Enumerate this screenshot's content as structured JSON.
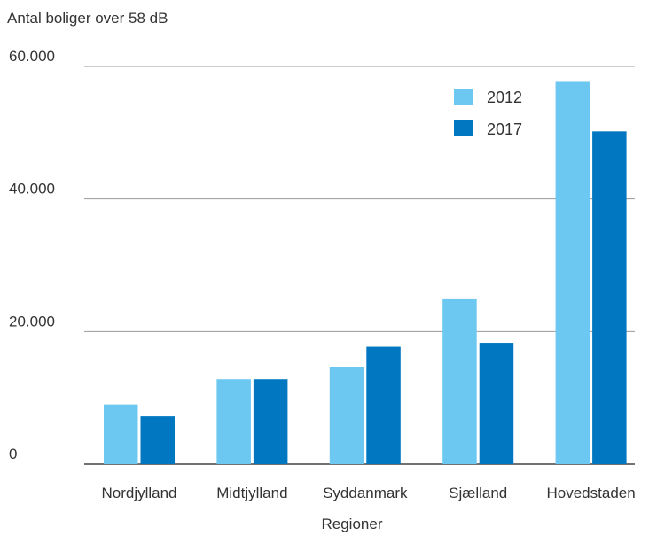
{
  "chart_data": {
    "type": "bar",
    "title": "",
    "ylabel": "Antal boliger over 58 dB",
    "xlabel": "Regioner",
    "categories": [
      "Nordjylland",
      "Midtjylland",
      "Syddanmark",
      "Sjælland",
      "Hovedstaden"
    ],
    "series": [
      {
        "name": "2012",
        "color": "#6CC8F0",
        "values": [
          9000,
          12800,
          14700,
          25000,
          57800
        ]
      },
      {
        "name": "2017",
        "color": "#0077C0",
        "values": [
          7200,
          12800,
          17700,
          18300,
          50200
        ]
      }
    ],
    "ylim": [
      0,
      60000
    ],
    "yticks": [
      0,
      20000,
      40000,
      60000
    ],
    "ytick_labels": [
      "0",
      "20.000",
      "40.000",
      "60.000"
    ],
    "grid": true,
    "legend_position": "top-right"
  }
}
